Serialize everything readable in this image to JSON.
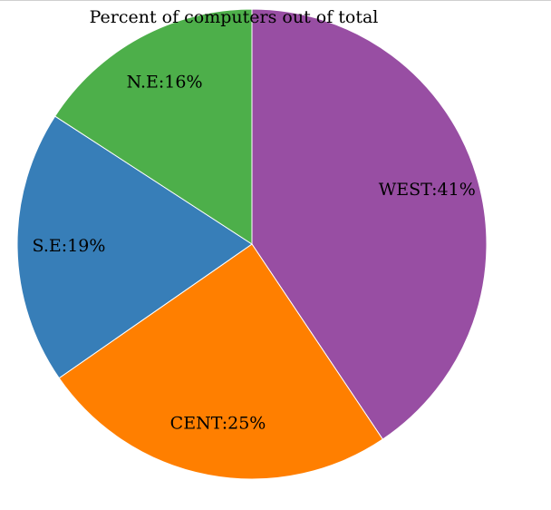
{
  "chart_data": {
    "type": "pie",
    "title": "Percent of computers out of total",
    "categories": [
      "WEST",
      "CENT",
      "S.E",
      "N.E"
    ],
    "values": [
      41,
      25,
      19,
      16
    ],
    "labels": [
      "WEST:41%",
      "CENT:25%",
      "S.E:19%",
      "N.E:16%"
    ],
    "colors": [
      "#984ea3",
      "#ff7f00",
      "#377eb8",
      "#4daf4a"
    ],
    "start_angle_deg": 0,
    "direction": "clockwise",
    "legend": "none"
  }
}
